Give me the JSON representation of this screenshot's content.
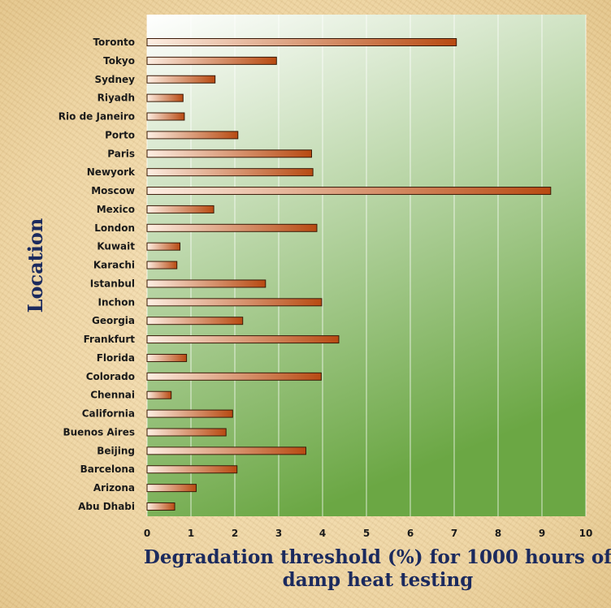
{
  "chart_data": {
    "type": "bar",
    "orientation": "horizontal",
    "categories": [
      "Toronto",
      "Tokyo",
      "Sydney",
      "Riyadh",
      "Rio de Janeiro",
      "Porto",
      "Paris",
      "Newyork",
      "Moscow",
      "Mexico",
      "London",
      "Kuwait",
      "Karachi",
      "Istanbul",
      "Inchon",
      "Georgia",
      "Frankfurt",
      "Florida",
      "Colorado",
      "Chennai",
      "California",
      "Buenos Aires",
      "Beijing",
      "Barcelona",
      "Arizona",
      "Abu Dhabi"
    ],
    "values": [
      7.05,
      2.95,
      1.55,
      0.82,
      0.85,
      2.07,
      3.75,
      3.78,
      9.2,
      1.52,
      3.87,
      0.75,
      0.68,
      2.7,
      3.98,
      2.18,
      4.37,
      0.9,
      3.97,
      0.55,
      1.95,
      1.8,
      3.62,
      2.05,
      1.12,
      0.63
    ],
    "xlabel_lines": [
      "Degradation threshold (%) for 1000 hours of",
      "damp heat testing"
    ],
    "ylabel": "Location",
    "xlim": [
      0,
      10
    ],
    "xticks": [
      0,
      1,
      2,
      3,
      4,
      5,
      6,
      7,
      8,
      9,
      10
    ],
    "grid": "vertical",
    "colors": {
      "bar_light": "#fdeee2",
      "bar_dark": "#b84a12",
      "bar_stroke": "#3a1a08",
      "plot_bg_light": "#ffffff",
      "plot_bg_dark": "#6ba744",
      "axis_title": "#1b2a5e"
    }
  }
}
